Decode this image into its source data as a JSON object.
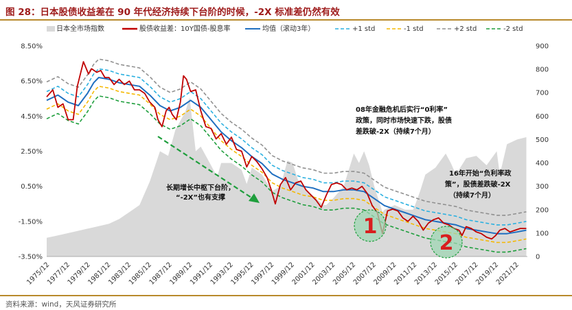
{
  "title": "图 28：日本股债收益差在 90 年代经济持续下台阶的时候，-2X 标准差仍然有效",
  "source": "资料来源：wind，天风证券研究所",
  "annotations": {
    "note_down": [
      "长期增长中枢下台阶，",
      "“-2X”也有支撑"
    ],
    "note_2008": [
      "08年金融危机后实行“0利率”",
      "政策，同时市场快速下跌，股债",
      "差跌破-2X（持续7个月）"
    ],
    "note_2016": [
      "16年开始“负利率政",
      "策”，股债差跌破-2X",
      "（持续7个月）"
    ],
    "marker1": "1",
    "marker2": "2"
  },
  "chart_data": {
    "type": "line",
    "xlabel": "",
    "ylabel": "",
    "x_tick_labels": [
      "1975/12",
      "1977/12",
      "1979/12",
      "1981/12",
      "1983/12",
      "1985/12",
      "1987/12",
      "1989/12",
      "1991/12",
      "1993/12",
      "1995/12",
      "1997/12",
      "1999/12",
      "2001/12",
      "2003/12",
      "2005/12",
      "2007/12",
      "2009/12",
      "2011/12",
      "2013/12",
      "2015/12",
      "2017/12",
      "2019/12",
      "2021/12"
    ],
    "y_left_tick_labels": [
      "8.50%",
      "6.50%",
      "4.50%",
      "2.50%",
      "0.50%",
      "-1.50%",
      "-3.50%"
    ],
    "y_left_lim": [
      -3.5,
      8.5
    ],
    "y_right_tick_labels": [
      "900",
      "800",
      "700",
      "600",
      "500",
      "400",
      "300",
      "200",
      "100",
      "0"
    ],
    "y_right_lim": [
      0,
      900
    ],
    "legend": {
      "placement": "top",
      "entries": [
        "日本全市场指数",
        "股债收益差：10Y国债-股息率",
        "均值（滚动3年）",
        "+1 std",
        "-1 std",
        "+2 std",
        "-2 std"
      ]
    },
    "colors": {
      "index": "#d9d9d9",
      "spread": "#c00000",
      "mean": "#1f6fc0",
      "plus1": "#2ab0e0",
      "minus1": "#f5b800",
      "plus2": "#909090",
      "minus2": "#1e9e3c",
      "arrow": "#1e9e3c"
    },
    "series": [
      {
        "name": "日本全市场指数",
        "axis": "right",
        "x": [
          1975.9,
          1977,
          1978,
          1979,
          1980,
          1981,
          1982,
          1983,
          1984,
          1985,
          1986,
          1987,
          1987.8,
          1988.5,
          1989.5,
          1989.9,
          1990.5,
          1991,
          1992,
          1992.6,
          1993,
          1994,
          1995,
          1995.5,
          1996,
          1997,
          1998,
          1998.8,
          1999.5,
          2000,
          2000.5,
          2001,
          2002,
          2003,
          2003.3,
          2004,
          2005,
          2006,
          2006.5,
          2007,
          2007.5,
          2008,
          2008.8,
          2009,
          2010,
          2011,
          2011.8,
          2012,
          2012.5,
          2013,
          2014,
          2015,
          2015.5,
          2016,
          2017,
          2018,
          2019,
          2020,
          2020.3,
          2021,
          2022,
          2022.9
        ],
        "values": [
          80,
          90,
          100,
          110,
          120,
          130,
          140,
          160,
          190,
          220,
          320,
          450,
          430,
          540,
          620,
          680,
          450,
          470,
          390,
          340,
          400,
          400,
          370,
          310,
          380,
          350,
          280,
          300,
          410,
          400,
          330,
          300,
          260,
          220,
          220,
          250,
          300,
          440,
          400,
          450,
          390,
          300,
          190,
          200,
          220,
          200,
          200,
          220,
          280,
          350,
          380,
          440,
          400,
          350,
          420,
          430,
          390,
          450,
          350,
          480,
          500,
          510
        ]
      },
      {
        "name": "股债收益差：10Y国债-股息率",
        "axis": "left",
        "x": [
          1975.9,
          1976.5,
          1977,
          1977.5,
          1978,
          1978.5,
          1978.9,
          1979.5,
          1980,
          1980.3,
          1980.8,
          1981.2,
          1981.6,
          1982,
          1982.5,
          1983,
          1983.5,
          1984,
          1984.5,
          1985,
          1985.5,
          1986,
          1986.5,
          1986.8,
          1987.2,
          1987.6,
          1987.9,
          1988.2,
          1988.6,
          1989,
          1989.3,
          1989.6,
          1990,
          1990.5,
          1991,
          1991.5,
          1992,
          1992.5,
          1993,
          1993.5,
          1994,
          1994.5,
          1995,
          1995.5,
          1996,
          1996.5,
          1997,
          1997.5,
          1997.9,
          1998.3,
          1998.8,
          1999.3,
          1999.8,
          2000.3,
          2000.8,
          2001.3,
          2001.8,
          2002.3,
          2002.8,
          2003.3,
          2003.8,
          2004.3,
          2004.8,
          2005.3,
          2005.8,
          2006.3,
          2006.8,
          2007.3,
          2007.8,
          2008.3,
          2008.8,
          2009.3,
          2009.8,
          2010.3,
          2010.8,
          2011.3,
          2011.8,
          2012.3,
          2012.8,
          2013.3,
          2013.8,
          2014.3,
          2014.8,
          2015.3,
          2015.8,
          2016.3,
          2016.6,
          2017,
          2017.5,
          2018,
          2018.5,
          2019,
          2019.5,
          2019.9,
          2020.3,
          2020.8,
          2021.3,
          2021.8,
          2022.3,
          2022.9
        ],
        "values": [
          5.6,
          6.0,
          5.0,
          5.2,
          4.3,
          4.3,
          6.2,
          7.6,
          6.9,
          7.2,
          7.0,
          7.1,
          6.7,
          6.7,
          6.3,
          6.6,
          6.3,
          6.5,
          6.0,
          6.0,
          5.8,
          5.3,
          5.0,
          4.3,
          3.9,
          4.8,
          5.0,
          4.6,
          4.3,
          5.3,
          6.8,
          6.6,
          5.9,
          6.0,
          4.8,
          3.9,
          3.8,
          3.2,
          3.5,
          2.9,
          3.3,
          2.6,
          2.5,
          1.6,
          2.2,
          1.9,
          1.5,
          1.0,
          0.3,
          -0.5,
          0.6,
          1.0,
          0.3,
          0.7,
          0.8,
          0.3,
          0.0,
          -0.3,
          -0.7,
          0.0,
          0.6,
          0.7,
          0.6,
          0.3,
          0.4,
          0.3,
          0.5,
          0.1,
          -0.6,
          -1.0,
          -2.2,
          -0.9,
          -0.8,
          -0.9,
          -1.3,
          -1.5,
          -1.2,
          -1.5,
          -2.0,
          -1.6,
          -1.4,
          -1.3,
          -1.6,
          -1.7,
          -1.9,
          -2.0,
          -2.3,
          -1.8,
          -1.9,
          -2.1,
          -2.2,
          -2.4,
          -2.5,
          -2.3,
          -2.0,
          -1.9,
          -2.1,
          -2.0,
          -1.9,
          -1.9
        ]
      },
      {
        "name": "均值（滚动3年）",
        "axis": "left",
        "x": [
          1975.9,
          1977,
          1978,
          1979,
          1979.9,
          1980.5,
          1981,
          1982,
          1983,
          1984,
          1985,
          1986,
          1987,
          1988,
          1989,
          1990,
          1991,
          1992,
          1993,
          1994,
          1995,
          1996,
          1997,
          1998,
          1999,
          2000,
          2001,
          2002,
          2003,
          2004,
          2005,
          2006,
          2007,
          2008,
          2009,
          2010,
          2011,
          2012,
          2013,
          2014,
          2015,
          2016,
          2017,
          2018,
          2019,
          2020,
          2021,
          2022,
          2022.9
        ],
        "values": [
          5.4,
          5.7,
          5.3,
          5.1,
          5.8,
          6.4,
          6.7,
          6.6,
          6.4,
          6.3,
          6.2,
          5.7,
          5.1,
          4.8,
          5.0,
          5.4,
          5.0,
          4.3,
          3.6,
          3.1,
          2.7,
          2.2,
          1.8,
          1.2,
          0.9,
          0.7,
          0.5,
          0.4,
          0.2,
          0.2,
          0.3,
          0.3,
          0.2,
          -0.2,
          -0.6,
          -0.8,
          -1.0,
          -1.2,
          -1.4,
          -1.5,
          -1.6,
          -1.7,
          -1.9,
          -2.0,
          -2.1,
          -2.2,
          -2.2,
          -2.1,
          -2.0
        ]
      }
    ],
    "band_offsets": {
      "plus1": 0.5,
      "minus1": -0.5,
      "plus2": 1.05,
      "minus2": -1.05
    }
  }
}
